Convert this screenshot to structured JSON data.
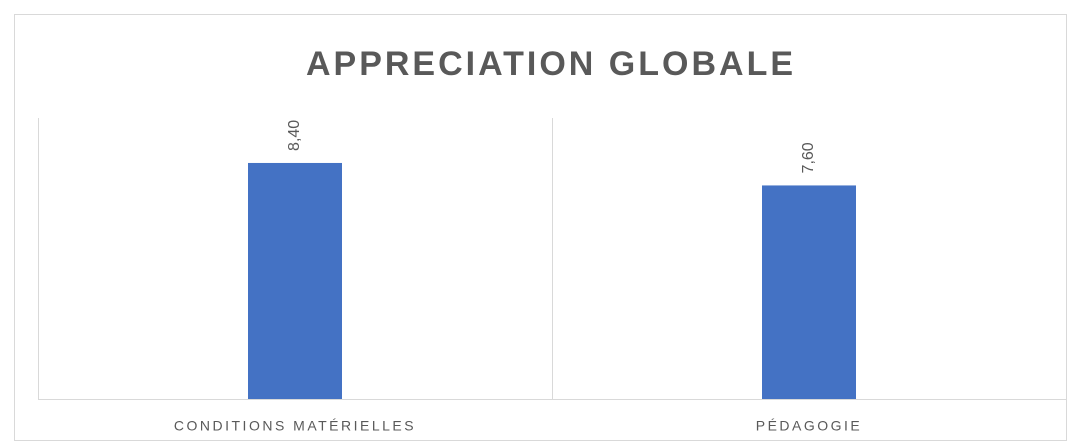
{
  "chart_data": {
    "type": "bar",
    "title": "APPRECIATION GLOBALE",
    "categories": [
      "CONDITIONS MATÉRIELLES",
      "PÉDAGOGIE"
    ],
    "values": [
      8.4,
      7.6
    ],
    "value_labels": [
      "8,40",
      "7,60"
    ],
    "color": "#4472c4",
    "ylim": [
      0,
      10
    ]
  }
}
